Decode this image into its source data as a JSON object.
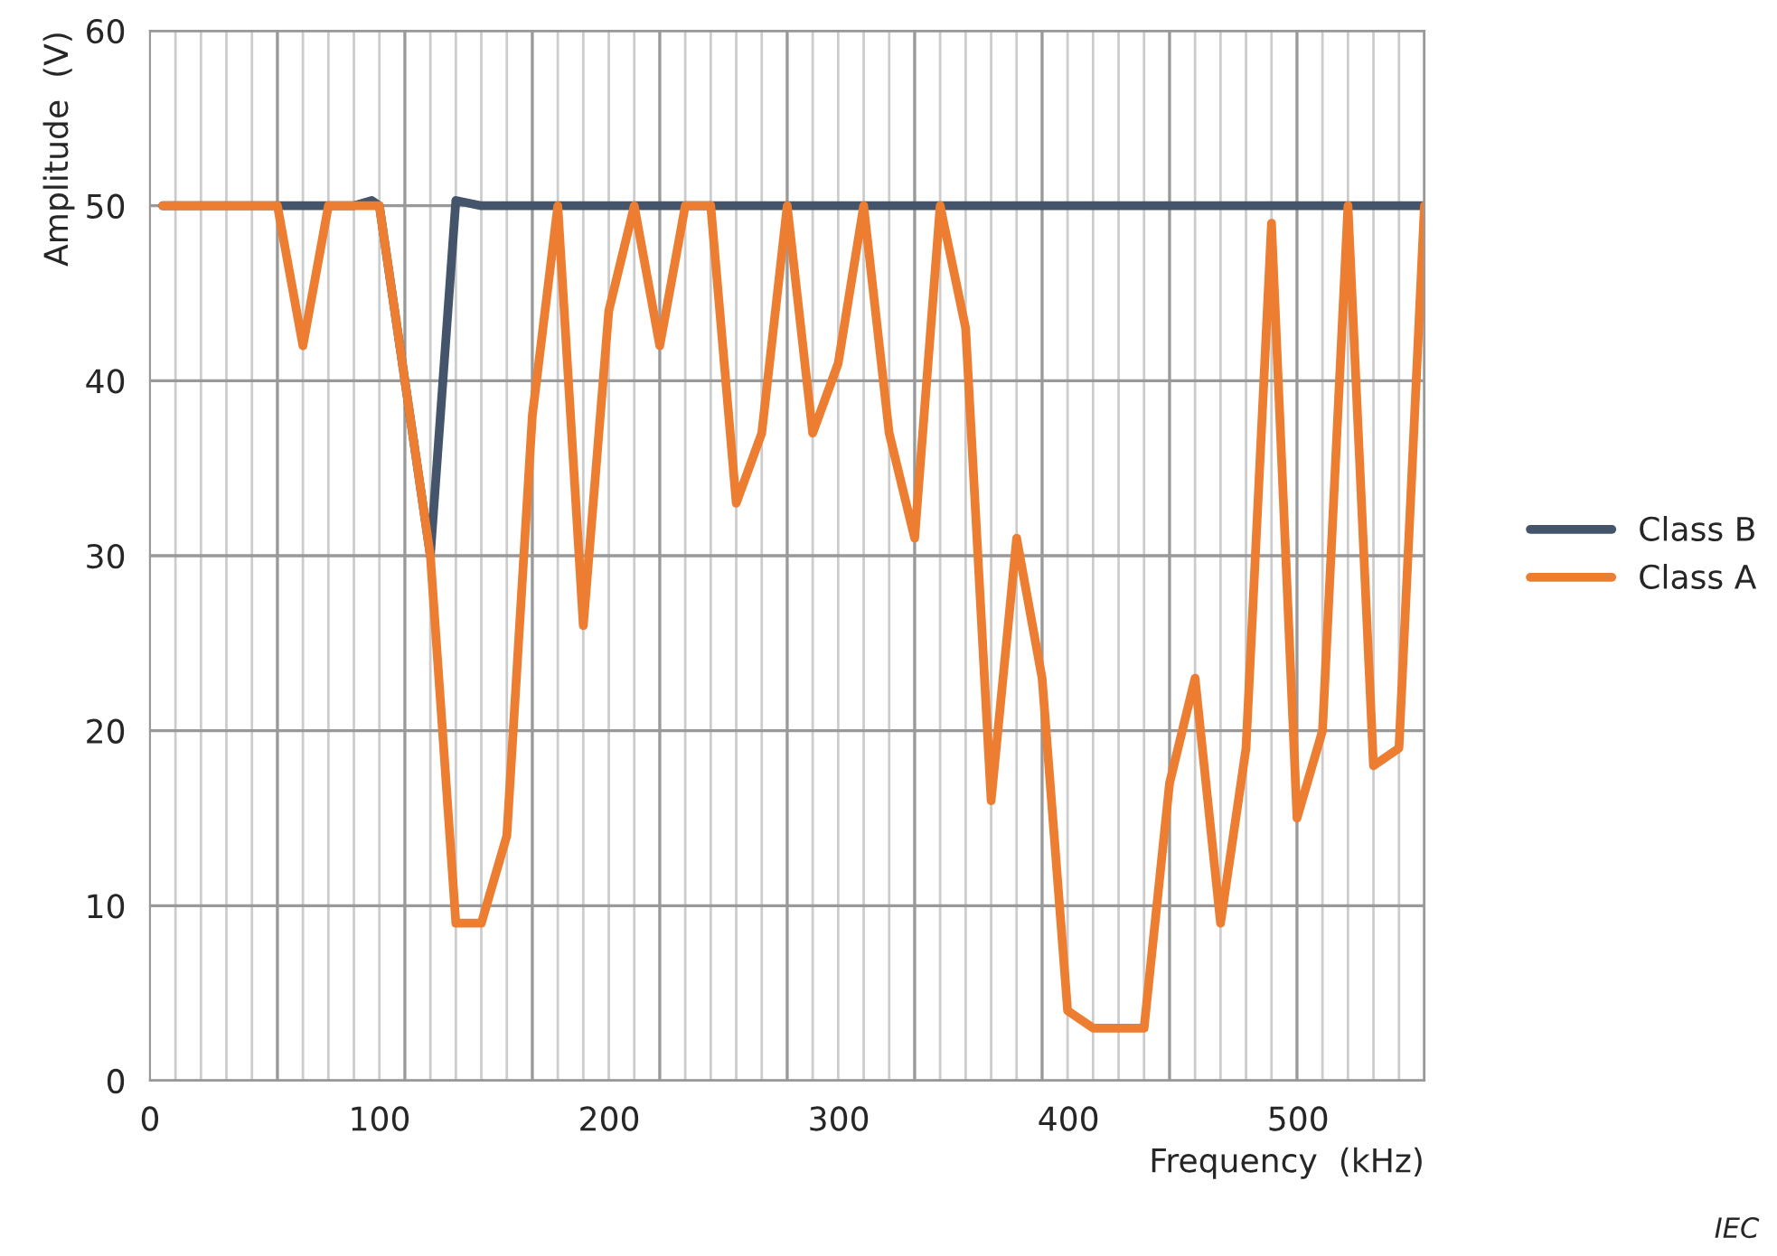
{
  "chart_data": {
    "type": "line",
    "xlabel": "Frequency  (kHz)",
    "ylabel": "Amplitude  (V)",
    "series": [
      {
        "name": "Class B",
        "color": "#44546a",
        "x": [
          5.55,
          88.8,
          96.6,
          99.9,
          122.1,
          133.2,
          144.3,
          555
        ],
        "values": [
          50,
          50,
          50.3,
          50,
          30,
          50.3,
          50,
          50
        ]
      },
      {
        "name": "Class A",
        "color": "#ed7d31",
        "x": [
          5.55,
          55.5,
          66.6,
          77.7,
          99.9,
          111,
          122.1,
          133.2,
          144.3,
          155.4,
          166.5,
          177.6,
          188.7,
          199.8,
          210.9,
          222,
          233.1,
          244.2,
          255.3,
          266.4,
          277.5,
          288.6,
          299.7,
          310.8,
          321.9,
          333,
          344.1,
          355.2,
          366.3,
          377.4,
          388.5,
          399.6,
          410.7,
          421.8,
          432.9,
          444,
          455.1,
          466.2,
          477.3,
          488.4,
          499.5,
          510.6,
          521.7,
          532.8,
          543.9,
          555
        ],
        "values": [
          50,
          50,
          42,
          50,
          50,
          40,
          30,
          9,
          9,
          14,
          38,
          50,
          26,
          44,
          50,
          42,
          50,
          50,
          33,
          37,
          50,
          37,
          41,
          50,
          37,
          31,
          50,
          43,
          16,
          31,
          23,
          4,
          3,
          3,
          3,
          17,
          23,
          9,
          19,
          49,
          15,
          20,
          50,
          18,
          19,
          50
        ]
      }
    ],
    "xlim": [
      0,
      555
    ],
    "xticks": [
      0,
      {
        "value": 55.5,
        "label": null
      },
      {
        "value": 111,
        "label": null
      },
      {
        "value": 166.5,
        "label": null
      },
      {
        "value": 222,
        "label": null
      },
      {
        "value": 277.5,
        "label": null
      },
      {
        "value": 333,
        "label": null
      },
      {
        "value": 388.5,
        "label": null
      },
      {
        "value": 444,
        "label": null
      },
      {
        "value": 499.5,
        "label": null
      },
      {
        "value": 555,
        "label": null
      },
      100,
      200,
      300,
      400,
      500
    ],
    "ylim": [
      0,
      60
    ],
    "yticks": [
      0,
      10,
      20,
      30,
      40,
      50,
      60
    ],
    "grid": true,
    "legend": "right",
    "line_style": "solid",
    "marker": "none",
    "annotations": [
      "IEC"
    ]
  }
}
